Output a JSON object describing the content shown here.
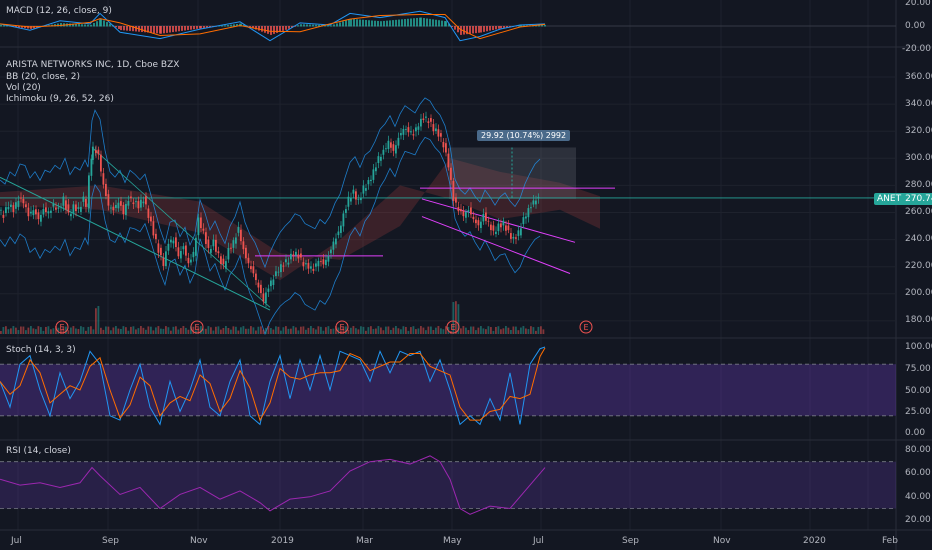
{
  "colors": {
    "bg": "#131722",
    "grid": "#1e222d",
    "up": "#26a69a",
    "down": "#ef5350",
    "macd": "#2196f3",
    "signal": "#ff6d00",
    "bb": "#2196f3",
    "stochK": "#2196f3",
    "stochD": "#ff6d00",
    "rsi": "#9c27b0",
    "channel": "#e040fb",
    "trend": "#26a69a",
    "priceLine": "#26a69a"
  },
  "panes": {
    "macd": {
      "label": "MACD (12, 26, close, 9)",
      "ticks": [
        "20.00",
        "0.00",
        "-20.00"
      ]
    },
    "main": {
      "title": "ARISTA NETWORKS INC, 1D, Cboe BZX",
      "indicators": [
        "BB (20, close, 2)",
        "Vol (20)",
        "Ichimoku (9, 26, 52, 26)"
      ],
      "ticks": [
        "360.00",
        "340.00",
        "320.00",
        "300.00",
        "280.00",
        "260.00",
        "240.00",
        "220.00",
        "200.00",
        "180.00"
      ],
      "symbol": "ANET",
      "last_price": "270.74",
      "range_label": "29.92 (10.74%) 2992",
      "earnings_marker": "E"
    },
    "stoch": {
      "label": "Stoch (14, 3, 3)",
      "ticks": [
        "100.00",
        "75.00",
        "50.00",
        "25.00",
        "0.00"
      ]
    },
    "rsi": {
      "label": "RSI (14, close)",
      "ticks": [
        "80.00",
        "60.00",
        "40.00",
        "20.00"
      ]
    }
  },
  "x_axis": [
    "Jul",
    "Sep",
    "Nov",
    "2019",
    "Mar",
    "May",
    "Jul",
    "Sep",
    "Nov",
    "2020",
    "Feb"
  ],
  "chart_data": {
    "type": "candlestick",
    "title": "ARISTA NETWORKS INC, 1D, Cboe BZX",
    "symbol": "ANET",
    "last": 270.74,
    "ylim": [
      170,
      370
    ],
    "price_path": [
      [
        0,
        262
      ],
      [
        5,
        258
      ],
      [
        10,
        266
      ],
      [
        15,
        262
      ],
      [
        20,
        270
      ],
      [
        25,
        268
      ],
      [
        30,
        258
      ],
      [
        35,
        262
      ],
      [
        40,
        255
      ],
      [
        45,
        262
      ],
      [
        50,
        260
      ],
      [
        55,
        265
      ],
      [
        60,
        262
      ],
      [
        65,
        270
      ],
      [
        70,
        258
      ],
      [
        75,
        264
      ],
      [
        80,
        262
      ],
      [
        85,
        270
      ],
      [
        88,
        265
      ],
      [
        92,
        300
      ],
      [
        95,
        308
      ],
      [
        100,
        302
      ],
      [
        105,
        280
      ],
      [
        110,
        265
      ],
      [
        115,
        262
      ],
      [
        120,
        268
      ],
      [
        125,
        260
      ],
      [
        130,
        270
      ],
      [
        135,
        268
      ],
      [
        140,
        265
      ],
      [
        145,
        270
      ],
      [
        150,
        258
      ],
      [
        155,
        245
      ],
      [
        160,
        232
      ],
      [
        165,
        222
      ],
      [
        170,
        238
      ],
      [
        175,
        240
      ],
      [
        180,
        228
      ],
      [
        185,
        235
      ],
      [
        190,
        222
      ],
      [
        195,
        230
      ],
      [
        200,
        255
      ],
      [
        205,
        245
      ],
      [
        210,
        232
      ],
      [
        215,
        238
      ],
      [
        220,
        228
      ],
      [
        225,
        220
      ],
      [
        230,
        232
      ],
      [
        235,
        238
      ],
      [
        240,
        248
      ],
      [
        245,
        232
      ],
      [
        250,
        222
      ],
      [
        255,
        215
      ],
      [
        260,
        205
      ],
      [
        265,
        195
      ],
      [
        270,
        205
      ],
      [
        275,
        212
      ],
      [
        280,
        218
      ],
      [
        285,
        222
      ],
      [
        290,
        225
      ],
      [
        295,
        230
      ],
      [
        300,
        228
      ],
      [
        305,
        222
      ],
      [
        310,
        220
      ],
      [
        315,
        218
      ],
      [
        320,
        225
      ],
      [
        325,
        222
      ],
      [
        330,
        228
      ],
      [
        335,
        238
      ],
      [
        340,
        245
      ],
      [
        345,
        258
      ],
      [
        350,
        270
      ],
      [
        355,
        275
      ],
      [
        360,
        268
      ],
      [
        365,
        278
      ],
      [
        370,
        282
      ],
      [
        375,
        290
      ],
      [
        380,
        300
      ],
      [
        385,
        305
      ],
      [
        390,
        312
      ],
      [
        395,
        305
      ],
      [
        400,
        315
      ],
      [
        405,
        322
      ],
      [
        410,
        320
      ],
      [
        415,
        318
      ],
      [
        420,
        325
      ],
      [
        425,
        330
      ],
      [
        430,
        328
      ],
      [
        435,
        322
      ],
      [
        440,
        318
      ],
      [
        445,
        310
      ],
      [
        450,
        295
      ],
      [
        455,
        270
      ],
      [
        460,
        262
      ],
      [
        465,
        258
      ],
      [
        470,
        262
      ],
      [
        475,
        255
      ],
      [
        480,
        250
      ],
      [
        485,
        258
      ],
      [
        490,
        252
      ],
      [
        495,
        245
      ],
      [
        500,
        250
      ],
      [
        505,
        252
      ],
      [
        510,
        245
      ],
      [
        515,
        240
      ],
      [
        520,
        245
      ],
      [
        525,
        255
      ],
      [
        530,
        262
      ],
      [
        535,
        268
      ],
      [
        540,
        271
      ]
    ],
    "macd": [
      [
        0,
        2
      ],
      [
        30,
        -4
      ],
      [
        60,
        5
      ],
      [
        90,
        2
      ],
      [
        100,
        12
      ],
      [
        120,
        -6
      ],
      [
        160,
        -12
      ],
      [
        200,
        -3
      ],
      [
        240,
        4
      ],
      [
        270,
        -14
      ],
      [
        300,
        3
      ],
      [
        330,
        1
      ],
      [
        350,
        12
      ],
      [
        380,
        8
      ],
      [
        420,
        14
      ],
      [
        445,
        8
      ],
      [
        460,
        -14
      ],
      [
        480,
        -10
      ],
      [
        500,
        -3
      ],
      [
        520,
        1
      ],
      [
        545,
        2
      ]
    ],
    "stoch_k": [
      [
        0,
        60
      ],
      [
        10,
        30
      ],
      [
        20,
        80
      ],
      [
        30,
        90
      ],
      [
        40,
        50
      ],
      [
        50,
        20
      ],
      [
        60,
        70
      ],
      [
        70,
        40
      ],
      [
        80,
        60
      ],
      [
        90,
        95
      ],
      [
        100,
        80
      ],
      [
        110,
        20
      ],
      [
        120,
        15
      ],
      [
        130,
        50
      ],
      [
        140,
        80
      ],
      [
        150,
        30
      ],
      [
        160,
        10
      ],
      [
        170,
        60
      ],
      [
        180,
        25
      ],
      [
        190,
        50
      ],
      [
        200,
        85
      ],
      [
        210,
        30
      ],
      [
        220,
        20
      ],
      [
        230,
        60
      ],
      [
        240,
        85
      ],
      [
        250,
        20
      ],
      [
        260,
        10
      ],
      [
        270,
        60
      ],
      [
        280,
        90
      ],
      [
        290,
        40
      ],
      [
        300,
        85
      ],
      [
        310,
        50
      ],
      [
        320,
        90
      ],
      [
        330,
        50
      ],
      [
        340,
        95
      ],
      [
        350,
        90
      ],
      [
        360,
        85
      ],
      [
        370,
        60
      ],
      [
        380,
        95
      ],
      [
        390,
        70
      ],
      [
        400,
        95
      ],
      [
        410,
        90
      ],
      [
        420,
        95
      ],
      [
        430,
        60
      ],
      [
        440,
        85
      ],
      [
        450,
        50
      ],
      [
        460,
        10
      ],
      [
        470,
        20
      ],
      [
        480,
        10
      ],
      [
        490,
        40
      ],
      [
        500,
        15
      ],
      [
        510,
        70
      ],
      [
        520,
        10
      ],
      [
        530,
        80
      ],
      [
        540,
        98
      ],
      [
        545,
        100
      ]
    ],
    "rsi": [
      [
        0,
        55
      ],
      [
        20,
        50
      ],
      [
        40,
        52
      ],
      [
        60,
        48
      ],
      [
        80,
        52
      ],
      [
        92,
        65
      ],
      [
        100,
        58
      ],
      [
        120,
        42
      ],
      [
        140,
        48
      ],
      [
        160,
        30
      ],
      [
        180,
        42
      ],
      [
        200,
        48
      ],
      [
        220,
        38
      ],
      [
        240,
        45
      ],
      [
        260,
        35
      ],
      [
        270,
        28
      ],
      [
        290,
        38
      ],
      [
        310,
        40
      ],
      [
        330,
        45
      ],
      [
        350,
        62
      ],
      [
        370,
        70
      ],
      [
        390,
        72
      ],
      [
        410,
        68
      ],
      [
        430,
        75
      ],
      [
        440,
        70
      ],
      [
        450,
        55
      ],
      [
        460,
        30
      ],
      [
        470,
        25
      ],
      [
        490,
        32
      ],
      [
        510,
        30
      ],
      [
        525,
        45
      ],
      [
        545,
        65
      ]
    ]
  }
}
